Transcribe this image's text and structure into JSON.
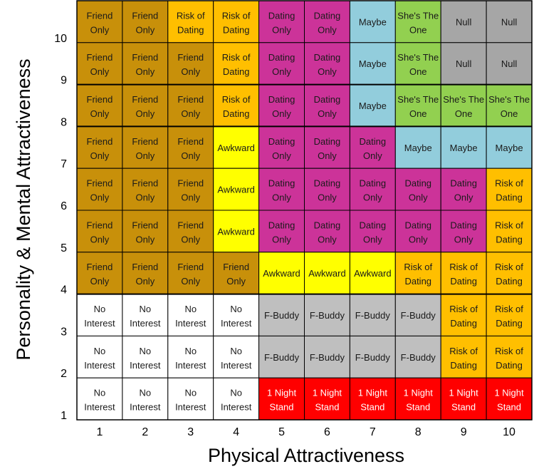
{
  "chart_data": {
    "type": "heatmap",
    "title": "",
    "xlabel": "Physical Attractiveness",
    "ylabel": "Personality & Mental Attractiveness",
    "x_ticks": [
      "1",
      "2",
      "3",
      "4",
      "5",
      "6",
      "7",
      "8",
      "9",
      "10"
    ],
    "y_ticks": [
      "1",
      "2",
      "3",
      "4",
      "5",
      "6",
      "7",
      "8",
      "9",
      "10"
    ],
    "xlim": [
      1,
      10
    ],
    "ylim": [
      1,
      10
    ],
    "categories": {
      "Friend Only": "#c8900a",
      "Risk of Dating": "#ffbf00",
      "Dating Only": "#cc3399",
      "Maybe": "#92cddc",
      "She's The One": "#92d050",
      "Null": "#a6a6a6",
      "Awkward": "#ffff00",
      "No Interest": "#ffffff",
      "F-Buddy": "#bfbfbf",
      "1 Night Stand": "#ff0000"
    },
    "rows": [
      {
        "y": 10,
        "cells": [
          "Friend Only",
          "Friend Only",
          "Risk of Dating",
          "Risk of Dating",
          "Dating Only",
          "Dating Only",
          "Maybe",
          "She's The One",
          "Null",
          "Null"
        ]
      },
      {
        "y": 9,
        "cells": [
          "Friend Only",
          "Friend Only",
          "Friend Only",
          "Risk of Dating",
          "Dating Only",
          "Dating Only",
          "Maybe",
          "She's The One",
          "Null",
          "Null"
        ]
      },
      {
        "y": 8,
        "cells": [
          "Friend Only",
          "Friend Only",
          "Friend Only",
          "Risk of Dating",
          "Dating Only",
          "Dating Only",
          "Maybe",
          "She's The One",
          "She's The One",
          "She's The One"
        ]
      },
      {
        "y": 7,
        "cells": [
          "Friend Only",
          "Friend Only",
          "Friend Only",
          "Awkward",
          "Dating Only",
          "Dating Only",
          "Dating Only",
          "Maybe",
          "Maybe",
          "Maybe"
        ]
      },
      {
        "y": 6,
        "cells": [
          "Friend Only",
          "Friend Only",
          "Friend Only",
          "Awkward",
          "Dating Only",
          "Dating Only",
          "Dating Only",
          "Dating Only",
          "Dating Only",
          "Risk of Dating"
        ]
      },
      {
        "y": 5,
        "cells": [
          "Friend Only",
          "Friend Only",
          "Friend Only",
          "Awkward",
          "Dating Only",
          "Dating Only",
          "Dating Only",
          "Dating Only",
          "Dating Only",
          "Risk of Dating"
        ]
      },
      {
        "y": 4,
        "cells": [
          "Friend Only",
          "Friend Only",
          "Friend Only",
          "Friend Only",
          "Awkward",
          "Awkward",
          "Awkward",
          "Risk of Dating",
          "Risk of Dating",
          "Risk of Dating"
        ]
      },
      {
        "y": 3,
        "cells": [
          "No Interest",
          "No Interest",
          "No Interest",
          "No Interest",
          "F-Buddy",
          "F-Buddy",
          "F-Buddy",
          "F-Buddy",
          "Risk of Dating",
          "Risk of Dating"
        ]
      },
      {
        "y": 2,
        "cells": [
          "No Interest",
          "No Interest",
          "No Interest",
          "No Interest",
          "F-Buddy",
          "F-Buddy",
          "F-Buddy",
          "F-Buddy",
          "Risk of Dating",
          "Risk of Dating"
        ]
      },
      {
        "y": 1,
        "cells": [
          "No Interest",
          "No Interest",
          "No Interest",
          "No Interest",
          "1 Night Stand",
          "1 Night Stand",
          "1 Night Stand",
          "1 Night Stand",
          "1 Night Stand",
          "1 Night Stand"
        ]
      }
    ],
    "grid": true
  }
}
